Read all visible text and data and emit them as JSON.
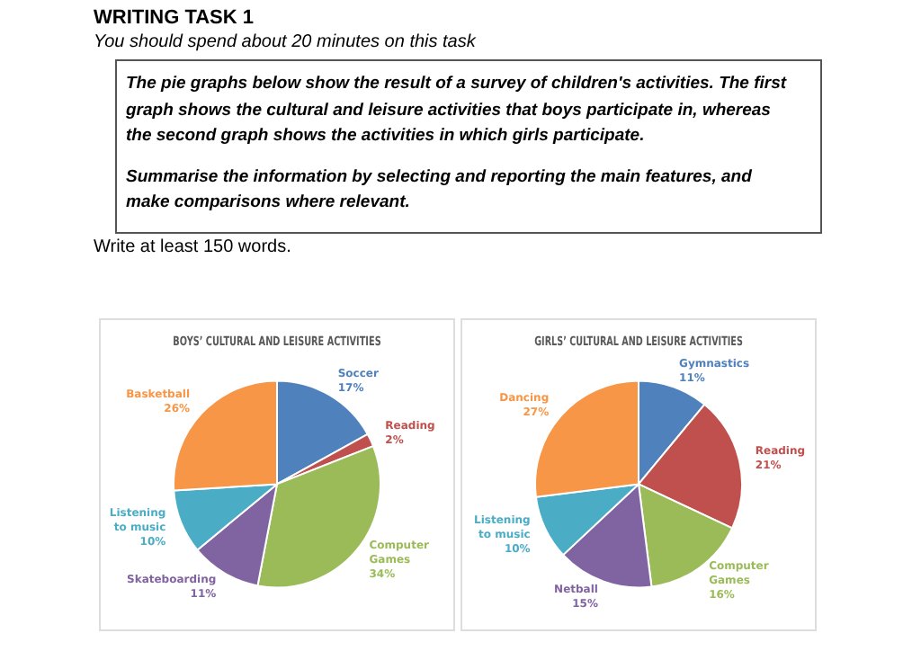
{
  "chart_data": [
    {
      "type": "other",
      "title": "WRITING TASK 1",
      "subtitle": "You should spend about 20 minutes on this task",
      "annotations": [
        "The pie graphs below show the result of a survey of children's activities. The first graph shows the cultural and leisure activities that boys participate in, whereas the second graph shows the activities in which girls participate.",
        "Summarise the information by selecting and reporting the main features, and make comparisons where relevant.",
        "Write at least 150 words."
      ]
    },
    {
      "type": "pie",
      "title": "BOYS’ CULTURAL AND LEISURE ACTIVITIES",
      "categories": [
        "Soccer",
        "Reading",
        "Computer Games",
        "Skateboarding",
        "Listening to music",
        "Basketball"
      ],
      "values": [
        17,
        2,
        34,
        11,
        10,
        26
      ],
      "value_labels": [
        "17%",
        "2%",
        "34%",
        "11%",
        "10%",
        "26%"
      ],
      "colors": [
        "#4f81bd",
        "#c0504d",
        "#9bbb59",
        "#8064a2",
        "#4bacc6",
        "#f79646"
      ]
    },
    {
      "type": "pie",
      "title": "GIRLS’ CULTURAL AND LEISURE ACTIVITIES",
      "categories": [
        "Gymnastics",
        "Reading",
        "Computer Games",
        "Netball",
        "Listening to music",
        "Dancing"
      ],
      "values": [
        11,
        21,
        16,
        15,
        10,
        27
      ],
      "value_labels": [
        "11%",
        "21%",
        "16%",
        "15%",
        "10%",
        "27%"
      ],
      "colors": [
        "#4f81bd",
        "#c0504d",
        "#9bbb59",
        "#8064a2",
        "#4bacc6",
        "#f79646"
      ]
    }
  ]
}
